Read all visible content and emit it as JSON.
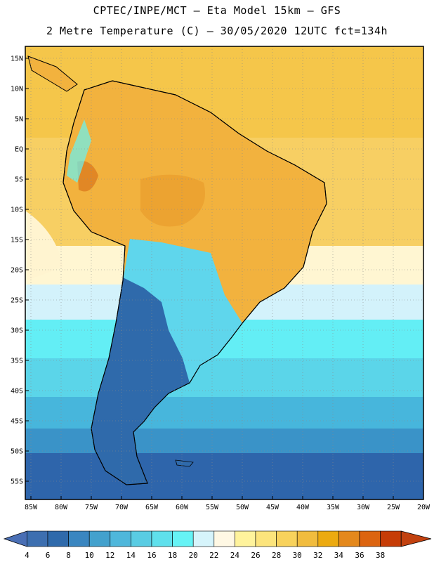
{
  "header": {
    "line1": "CPTEC/INPE/MCT –  Eta Model 15km – GFS",
    "line2": "2 Metre Temperature (C) – 30/05/2020 12UTC fct=134h"
  },
  "map": {
    "lat_ticks": [
      "15N",
      "10N",
      "5N",
      "EQ",
      "5S",
      "10S",
      "15S",
      "20S",
      "25S",
      "30S",
      "35S",
      "40S",
      "45S",
      "50S",
      "55S"
    ],
    "lon_ticks": [
      "85W",
      "80W",
      "75W",
      "70W",
      "65W",
      "60W",
      "55W",
      "50W",
      "45W",
      "40W",
      "35W",
      "30W",
      "25W",
      "20W"
    ],
    "lat_range": [
      17,
      -58
    ],
    "lon_range": [
      -86,
      -20
    ]
  },
  "colorbar": {
    "labels": [
      "4",
      "6",
      "8",
      "10",
      "12",
      "14",
      "16",
      "18",
      "20",
      "22",
      "24",
      "26",
      "28",
      "30",
      "32",
      "34",
      "36",
      "38"
    ],
    "colors": [
      "#3d6fb0",
      "#2f6aab",
      "#3a86c0",
      "#43a1cd",
      "#4fb7db",
      "#59cce3",
      "#5fe0ec",
      "#66f3f5",
      "#d6f4fb",
      "#fff8e4",
      "#fff39c",
      "#fce47c",
      "#f8d25c",
      "#f1bc3e",
      "#ecaa10",
      "#e4881c",
      "#dc6410",
      "#c63c06"
    ],
    "low_color": "#4a6fb5",
    "high_color": "#c2410f"
  }
}
